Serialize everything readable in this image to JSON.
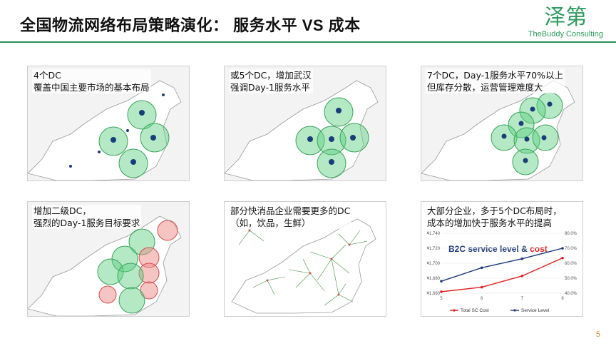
{
  "header": {
    "title": "全国物流网络布局策略演化：  服务水平 VS 成本",
    "logo_cn": "泽第",
    "logo_en": "TheBuddy Consulting"
  },
  "panels": [
    {
      "caption_lines": [
        "4个DC",
        "覆盖中国主要市场的基本布局"
      ]
    },
    {
      "caption_lines": [
        "或5个DC，增加武汉",
        "强调Day-1服务水平"
      ]
    },
    {
      "caption_lines": [
        "7个DC，Day-1服务水平70%以上",
        "但库存分散，运营管理难度大"
      ]
    },
    {
      "caption_lines": [
        "增加二级DC，",
        "强烈的Day-1服务目标要求"
      ]
    },
    {
      "caption_lines": [
        "部分快消品企业需要更多的DC",
        "（如，饮品，生鲜）"
      ]
    },
    {
      "caption_lines": [
        "大部分企业，多于5个DC布局时，",
        "成本的增加快于服务水平的提高"
      ]
    }
  ],
  "chart_data": {
    "type": "line",
    "title_part1": "B2C ",
    "title_part2": "service level",
    "title_part3": " & ",
    "title_part4": "cost",
    "x": [
      5,
      6,
      7,
      8
    ],
    "yleft_ticks": [
      "¥1,740",
      "¥1,720",
      "¥1,700",
      "¥1,680",
      "¥1,660"
    ],
    "yright_ticks": [
      "80.0%",
      "70.0%",
      "60.0%",
      "50.0%",
      "40.0%"
    ],
    "ylim_left": [
      1660,
      1740
    ],
    "ylim_right": [
      0.4,
      0.8
    ],
    "series": [
      {
        "name": "Total SC Cost",
        "axis": "left",
        "values": [
          1662,
          1668,
          1683,
          1707
        ],
        "color": "#e02020"
      },
      {
        "name": "Service Level",
        "axis": "right",
        "values": [
          0.48,
          0.57,
          0.63,
          0.7
        ],
        "color": "#1f3a7a"
      }
    ],
    "colors": {
      "title_blue": "#1f3a7a",
      "title_red": "#e02020"
    }
  },
  "page_number": "5"
}
